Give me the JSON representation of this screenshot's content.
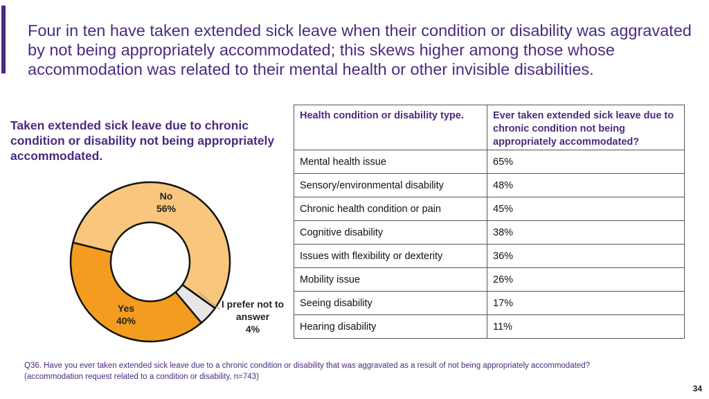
{
  "slide": {
    "title": "Four in ten have taken extended sick leave when their condition or disability was aggravated by not being appropriately accommodated; this skews higher among those whose accommodation was related to their mental health or other invisible disabilities.",
    "chart_title": "Taken extended sick leave due to chronic condition or disability not being appropriately accommodated.",
    "footnote_line1": "Q36. Have you ever taken extended sick leave due to a chronic condition or disability that was aggravated as a result of not being appropriately accommodated?",
    "footnote_line2": "(accommodation request related to a condition or disability, n=743)",
    "page_number": "34",
    "accent_color": "#4b2a7f"
  },
  "chart_data": [
    {
      "type": "pie",
      "variant": "donut",
      "title": "Taken extended sick leave due to chronic condition or disability not being appropriately accommodated.",
      "slices": [
        {
          "label": "No",
          "value": 56,
          "value_label": "56%",
          "color": "#f8c67c"
        },
        {
          "label": "I prefer not to answer",
          "value": 4,
          "value_label": "4%",
          "color": "#e6e6e6"
        },
        {
          "label": "Yes",
          "value": 40,
          "value_label": "40%",
          "color": "#f39c1f"
        }
      ]
    },
    {
      "type": "table",
      "columns": [
        "Health condition or disability type.",
        "Ever taken extended sick leave due to chronic condition not being appropriately accommodated?"
      ],
      "rows": [
        {
          "label": "Mental health issue",
          "value": "65%"
        },
        {
          "label": "Sensory/environmental disability",
          "value": "48%"
        },
        {
          "label": "Chronic health condition or pain",
          "value": "45%"
        },
        {
          "label": "Cognitive disability",
          "value": "38%"
        },
        {
          "label": "Issues with flexibility or dexterity",
          "value": "36%"
        },
        {
          "label": "Mobility issue",
          "value": "26%"
        },
        {
          "label": "Seeing disability",
          "value": "17%"
        },
        {
          "label": "Hearing disability",
          "value": "11%"
        }
      ]
    }
  ]
}
